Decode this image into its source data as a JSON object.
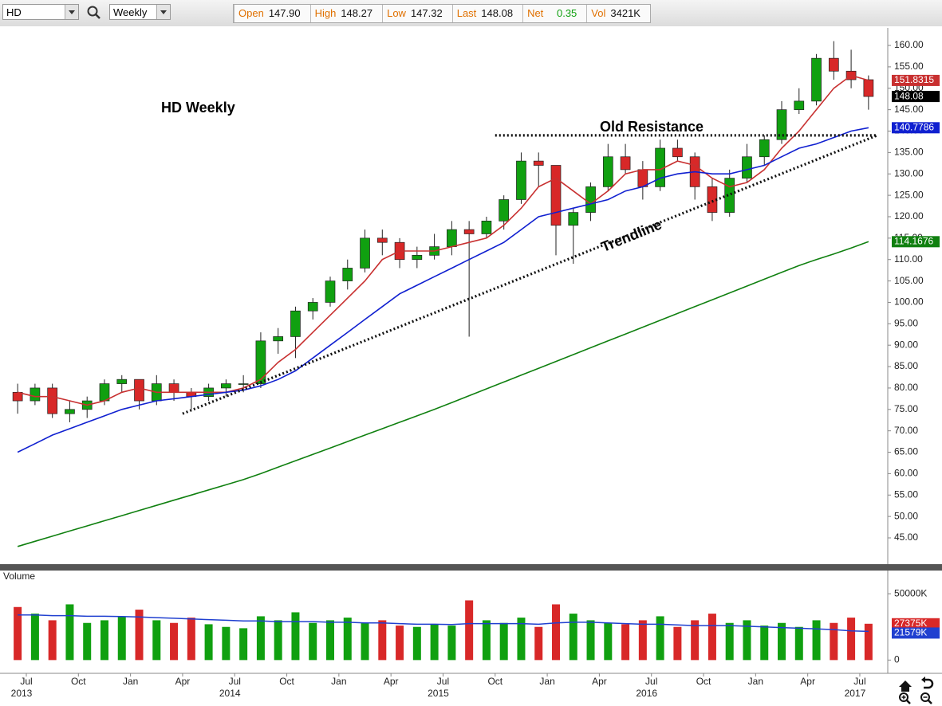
{
  "toolbar": {
    "symbol": "HD",
    "period": "Weekly",
    "fields": [
      {
        "label": "Open",
        "value": "147.90"
      },
      {
        "label": "High",
        "value": "148.27"
      },
      {
        "label": "Low",
        "value": "147.32"
      },
      {
        "label": "Last",
        "value": "148.08"
      },
      {
        "label": "Net",
        "value": "0.35"
      },
      {
        "label": "Vol",
        "value": "3421K"
      }
    ]
  },
  "chart_data": {
    "type": "candlestick",
    "title": "HD Weekly",
    "x": [
      "2013-06",
      "2013-07",
      "2013-08",
      "2013-09",
      "2013-10",
      "2013-11",
      "2013-12",
      "2014-01",
      "2014-02",
      "2014-03",
      "2014-04",
      "2014-05",
      "2014-06",
      "2014-07",
      "2014-08",
      "2014-09",
      "2014-10",
      "2014-11",
      "2014-12",
      "2015-01",
      "2015-02",
      "2015-03",
      "2015-04",
      "2015-05",
      "2015-06",
      "2015-07",
      "2015-08",
      "2015-09",
      "2015-10",
      "2015-11",
      "2015-12",
      "2016-01",
      "2016-02",
      "2016-03",
      "2016-04",
      "2016-05",
      "2016-06",
      "2016-07",
      "2016-08",
      "2016-09",
      "2016-10",
      "2016-11",
      "2016-12",
      "2017-01",
      "2017-02",
      "2017-03",
      "2017-04",
      "2017-05",
      "2017-06",
      "2017-07"
    ],
    "open": [
      79,
      77,
      80,
      74,
      75,
      77,
      81,
      82,
      77,
      81,
      79,
      78,
      80,
      81,
      81,
      91,
      92,
      98,
      100,
      105,
      108,
      115,
      114,
      110,
      111,
      113,
      117,
      116,
      119,
      124,
      133,
      132,
      118,
      121,
      127,
      134,
      131,
      127,
      136,
      134,
      127,
      121,
      129,
      134,
      138,
      145,
      147,
      157,
      154,
      152
    ],
    "high": [
      81,
      81,
      81,
      77,
      78,
      82,
      83,
      82,
      83,
      82,
      80,
      81,
      82,
      83,
      93,
      94,
      99,
      101,
      106,
      110,
      117,
      117,
      115,
      113,
      116,
      119,
      119,
      120,
      125,
      135,
      135,
      132,
      122,
      128,
      137,
      137,
      133,
      138,
      138,
      135,
      129,
      131,
      137,
      139,
      147,
      150,
      158,
      161,
      159,
      153
    ],
    "low": [
      74,
      76,
      73,
      72,
      73,
      76,
      79,
      75,
      76,
      77,
      75,
      77,
      78,
      79,
      80,
      88,
      87,
      96,
      99,
      103,
      107,
      111,
      108,
      108,
      110,
      111,
      92,
      115,
      117,
      123,
      127,
      111,
      109,
      119,
      126,
      130,
      124,
      126,
      133,
      124,
      119,
      120,
      128,
      132,
      137,
      144,
      146,
      152,
      150,
      145
    ],
    "close": [
      77,
      80,
      74,
      75,
      77,
      81,
      82,
      77,
      81,
      79,
      78,
      80,
      81,
      81,
      91,
      92,
      98,
      100,
      105,
      108,
      115,
      114,
      110,
      111,
      113,
      117,
      116,
      119,
      124,
      133,
      132,
      118,
      121,
      127,
      134,
      131,
      127,
      136,
      134,
      127,
      121,
      129,
      134,
      138,
      145,
      147,
      157,
      154,
      152,
      148.08
    ],
    "up_color": "#10a010",
    "down_color": "#d82828",
    "series": [
      {
        "name": "MA fast",
        "color": "#c83030",
        "values": [
          79,
          78,
          78,
          77,
          76,
          77,
          79,
          80,
          79,
          79,
          79,
          79,
          79,
          80,
          82,
          86,
          89,
          93,
          97,
          101,
          105,
          110,
          112,
          112,
          112,
          113,
          114,
          115,
          118,
          122,
          127,
          129,
          126,
          123,
          126,
          130,
          131,
          131,
          133,
          132,
          129,
          127,
          128,
          131,
          136,
          140,
          145,
          150,
          153,
          151.8315
        ]
      },
      {
        "name": "MA medium",
        "color": "#1020d0",
        "values": [
          65,
          67,
          69,
          70.5,
          72,
          73.5,
          75,
          76,
          77,
          77.5,
          78,
          78.5,
          79,
          79.5,
          80.5,
          82,
          84,
          87,
          90,
          93,
          96,
          99,
          102,
          104,
          106,
          108,
          110,
          112,
          114,
          117,
          120,
          121,
          122,
          123,
          124,
          126,
          127,
          129,
          130,
          130.5,
          130,
          130,
          131,
          132,
          134,
          136,
          137,
          138.5,
          140,
          140.7786
        ]
      },
      {
        "name": "MA slow",
        "color": "#108010",
        "values": [
          43,
          44.2,
          45.4,
          46.6,
          47.8,
          49,
          50.2,
          51.4,
          52.6,
          53.8,
          55,
          56.2,
          57.4,
          58.6,
          60,
          61.5,
          63,
          64.5,
          66,
          67.5,
          69,
          70.5,
          72,
          73.5,
          75,
          76.6,
          78.2,
          79.8,
          81.4,
          83,
          84.6,
          86.2,
          87.8,
          89.4,
          91,
          92.6,
          94.2,
          95.8,
          97.4,
          99,
          100.6,
          102.2,
          103.8,
          105.4,
          107,
          108.6,
          110,
          111.3,
          112.7,
          114.1676
        ]
      }
    ],
    "ylim": [
      38.86,
      164.1
    ],
    "yticks": [
      {
        "value": 45,
        "label": "45.00"
      },
      {
        "value": 50,
        "label": "50.00"
      },
      {
        "value": 55,
        "label": "55.00"
      },
      {
        "value": 60,
        "label": "60.00"
      },
      {
        "value": 65,
        "label": "65.00"
      },
      {
        "value": 70,
        "label": "70.00"
      },
      {
        "value": 75,
        "label": "75.00"
      },
      {
        "value": 80,
        "label": "80.00"
      },
      {
        "value": 85,
        "label": "85.00"
      },
      {
        "value": 90,
        "label": "90.00"
      },
      {
        "value": 95,
        "label": "95.00"
      },
      {
        "value": 100,
        "label": "100.00"
      },
      {
        "value": 105,
        "label": "105.00"
      },
      {
        "value": 110,
        "label": "110.00"
      },
      {
        "value": 115,
        "label": "115.00"
      },
      {
        "value": 120,
        "label": "120.00"
      },
      {
        "value": 125,
        "label": "125.00"
      },
      {
        "value": 130,
        "label": "130.00"
      },
      {
        "value": 135,
        "label": "135.00"
      },
      {
        "value": 140,
        "label": "140.00"
      },
      {
        "value": 145,
        "label": "145.00"
      },
      {
        "value": 150,
        "label": "150.00"
      },
      {
        "value": 155,
        "label": "155.00"
      },
      {
        "value": 160,
        "label": "160.00"
      }
    ],
    "xticks": [
      {
        "value": "2013-07",
        "label": "Jul"
      },
      {
        "value": "2013-10",
        "label": "Oct"
      },
      {
        "value": "2014-01",
        "label": "Jan"
      },
      {
        "value": "2014-04",
        "label": "Apr"
      },
      {
        "value": "2014-07",
        "label": "Jul"
      },
      {
        "value": "2014-10",
        "label": "Oct"
      },
      {
        "value": "2015-01",
        "label": "Jan"
      },
      {
        "value": "2015-04",
        "label": "Apr"
      },
      {
        "value": "2015-07",
        "label": "Jul"
      },
      {
        "value": "2015-10",
        "label": "Oct"
      },
      {
        "value": "2016-01",
        "label": "Jan"
      },
      {
        "value": "2016-04",
        "label": "Apr"
      },
      {
        "value": "2016-07",
        "label": "Jul"
      },
      {
        "value": "2016-10",
        "label": "Oct"
      },
      {
        "value": "2017-01",
        "label": "Jan"
      },
      {
        "value": "2017-04",
        "label": "Apr"
      },
      {
        "value": "2017-07",
        "label": "Jul"
      }
    ],
    "years": [
      "2013",
      "2014",
      "2015",
      "2016",
      "2017"
    ],
    "lines": [
      {
        "label": "Old Resistance",
        "x": [
          "2015-10",
          "2017-08"
        ],
        "y": [
          139,
          139
        ]
      },
      {
        "label": "Trendline",
        "x": [
          "2014-04",
          "2017-08"
        ],
        "y": [
          74,
          139
        ]
      }
    ],
    "volume": {
      "title": "Volume",
      "values": [
        40000,
        35000,
        30000,
        42000,
        28000,
        30000,
        33000,
        38000,
        30000,
        28000,
        32000,
        27000,
        25000,
        24000,
        33000,
        30000,
        36000,
        28000,
        30000,
        32000,
        28000,
        30000,
        26000,
        25000,
        27000,
        26000,
        45000,
        30000,
        28000,
        32000,
        25000,
        42000,
        35000,
        30000,
        28000,
        27000,
        30000,
        33000,
        25000,
        30000,
        35000,
        28000,
        30000,
        26000,
        28000,
        25000,
        30000,
        28000,
        32000,
        27375
      ],
      "last_label": "27375K",
      "average": {
        "color": "#2040d0",
        "values": [
          34000,
          34000,
          33500,
          33500,
          33000,
          33000,
          32800,
          32500,
          32000,
          31500,
          31000,
          30500,
          30000,
          29500,
          29500,
          29000,
          29000,
          29000,
          28500,
          28500,
          28000,
          28000,
          27500,
          27000,
          27000,
          26800,
          27500,
          27500,
          27500,
          27500,
          27000,
          28000,
          28500,
          28500,
          28000,
          27500,
          27000,
          27000,
          26500,
          26000,
          26000,
          26000,
          25500,
          25000,
          24500,
          24000,
          23500,
          23000,
          22000,
          21579
        ],
        "last_label": "21579K"
      },
      "ylim": [
        -10000,
        67500
      ],
      "yticks": [
        {
          "value": 50000,
          "label": "50000K"
        },
        0
      ]
    }
  }
}
